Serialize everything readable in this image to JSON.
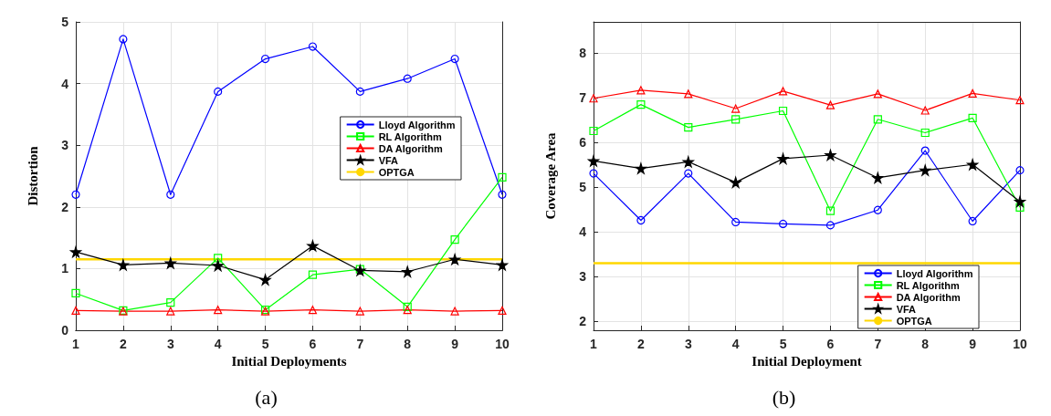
{
  "chart_data": [
    {
      "type": "line",
      "xlabel": "Initial Deployments",
      "ylabel": "Distortion",
      "annotations": [
        "(a)"
      ],
      "x": [
        1,
        2,
        3,
        4,
        5,
        6,
        7,
        8,
        9,
        10
      ],
      "xlim": [
        1,
        10
      ],
      "xticks": [
        1,
        2,
        3,
        4,
        5,
        6,
        7,
        8,
        9,
        10
      ],
      "ylim": [
        0,
        5
      ],
      "yticks": [
        0,
        1,
        2,
        3,
        4,
        5
      ],
      "grid": true,
      "legend": "right",
      "series": [
        {
          "name": "Lloyd Algorithm",
          "color": "#0000ff",
          "marker": "circle",
          "values": [
            2.2,
            4.72,
            2.2,
            3.87,
            4.4,
            4.6,
            3.87,
            4.08,
            4.4,
            2.2
          ]
        },
        {
          "name": "RL Algorithm",
          "color": "#00ff00",
          "marker": "square",
          "values": [
            0.6,
            0.32,
            0.45,
            1.17,
            0.33,
            0.9,
            0.99,
            0.38,
            1.47,
            2.48
          ]
        },
        {
          "name": "DA Algorithm",
          "color": "#ff0000",
          "marker": "triangle",
          "values": [
            0.32,
            0.31,
            0.31,
            0.33,
            0.31,
            0.33,
            0.31,
            0.33,
            0.31,
            0.32
          ]
        },
        {
          "name": "VFA",
          "color": "#000000",
          "marker": "star",
          "values": [
            1.27,
            1.06,
            1.09,
            1.05,
            0.82,
            1.37,
            0.97,
            0.95,
            1.15,
            1.06
          ]
        },
        {
          "name": "OPTGA",
          "color": "#ffd700",
          "marker": "none",
          "values": [
            1.15,
            1.15,
            1.15,
            1.15,
            1.15,
            1.15,
            1.15,
            1.15,
            1.15,
            1.15
          ]
        }
      ]
    },
    {
      "type": "line",
      "xlabel": "Initial Deployment",
      "ylabel": "Coverage Area",
      "annotations": [
        "(b)"
      ],
      "x": [
        1,
        2,
        3,
        4,
        5,
        6,
        7,
        8,
        9,
        10
      ],
      "xlim": [
        1,
        10
      ],
      "xticks": [
        1,
        2,
        3,
        4,
        5,
        6,
        7,
        8,
        9,
        10
      ],
      "ylim": [
        1.8,
        8.7
      ],
      "yticks": [
        2,
        3,
        4,
        5,
        6,
        7,
        8
      ],
      "grid": true,
      "legend": "bottom right",
      "series": [
        {
          "name": "Lloyd Algorithm",
          "color": "#0000ff",
          "marker": "circle",
          "values": [
            5.31,
            4.26,
            5.31,
            4.22,
            4.18,
            4.15,
            4.49,
            5.82,
            4.24,
            5.38
          ]
        },
        {
          "name": "RL Algorithm",
          "color": "#00ff00",
          "marker": "square",
          "values": [
            6.26,
            6.85,
            6.34,
            6.52,
            6.71,
            4.47,
            6.52,
            6.22,
            6.55,
            4.55
          ]
        },
        {
          "name": "DA Algorithm",
          "color": "#ff0000",
          "marker": "triangle",
          "values": [
            6.99,
            7.17,
            7.09,
            6.76,
            7.15,
            6.84,
            7.09,
            6.72,
            7.1,
            6.95
          ]
        },
        {
          "name": "VFA",
          "color": "#000000",
          "marker": "star",
          "values": [
            5.59,
            5.42,
            5.57,
            5.11,
            5.64,
            5.72,
            5.21,
            5.38,
            5.51,
            4.68
          ]
        },
        {
          "name": "OPTGA",
          "color": "#ffd700",
          "marker": "none",
          "values": [
            3.3,
            3.3,
            3.3,
            3.3,
            3.3,
            3.3,
            3.3,
            3.3,
            3.3,
            3.3
          ]
        }
      ]
    }
  ]
}
